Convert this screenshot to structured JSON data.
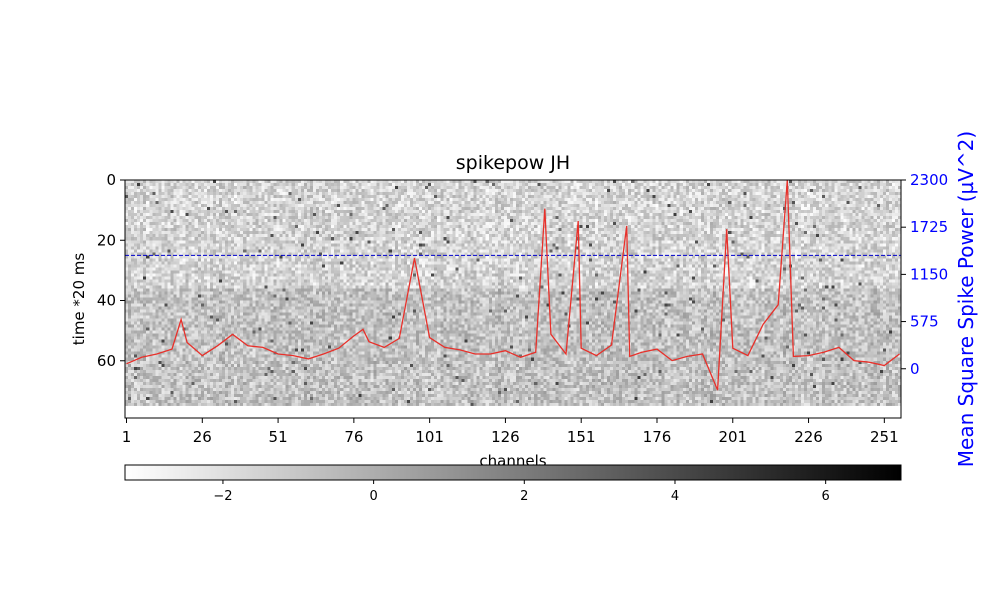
{
  "chart_data": {
    "type": "heatmap",
    "title": "spikepow JH",
    "xlabel": "channels",
    "ylabel": "time *20 ms",
    "y2label": "Mean Square Spike Power (µV^2)",
    "x_ticks": [
      "1",
      "26",
      "51",
      "76",
      "101",
      "126",
      "151",
      "176",
      "201",
      "226",
      "251"
    ],
    "y_ticks": [
      "0",
      "20",
      "40",
      "60"
    ],
    "y2_ticks": [
      "2300",
      "1725",
      "1150",
      "575",
      "0"
    ],
    "colorbar_ticks": [
      "−2",
      "0",
      "2",
      "4",
      "6"
    ],
    "colorbar_range": [
      -3.3,
      7
    ],
    "colormap": "gray_r",
    "heatmap_rows": 75,
    "heatmap_cols": 256,
    "ylim": [
      0,
      79
    ],
    "y2lim": [
      -600,
      2300
    ],
    "threshold_line": {
      "time": 25,
      "color": "#0000cc",
      "style": "dashed"
    },
    "series": [
      {
        "color": "#e8302a",
        "x": [
          1,
          6,
          11,
          16,
          19,
          21,
          26,
          31,
          36,
          41,
          46,
          51,
          56,
          61,
          66,
          71,
          76,
          79,
          81,
          86,
          91,
          96,
          101,
          106,
          111,
          116,
          121,
          126,
          131,
          136,
          139,
          141,
          146,
          150,
          151,
          156,
          161,
          166,
          167,
          171,
          176,
          181,
          186,
          191,
          196,
          199,
          201,
          206,
          211,
          216,
          219,
          221,
          226,
          231,
          236,
          241,
          246,
          251,
          256
        ],
        "values": [
          60,
          140,
          180,
          240,
          600,
          320,
          160,
          280,
          420,
          280,
          260,
          180,
          160,
          120,
          180,
          250,
          400,
          480,
          330,
          260,
          370,
          1350,
          380,
          260,
          230,
          180,
          180,
          220,
          140,
          200,
          1950,
          420,
          180,
          1800,
          250,
          160,
          290,
          1740,
          150,
          200,
          240,
          100,
          150,
          180,
          -260,
          1700,
          250,
          160,
          540,
          780,
          2300,
          150,
          160,
          200,
          260,
          100,
          80,
          40,
          180
        ]
      }
    ]
  }
}
